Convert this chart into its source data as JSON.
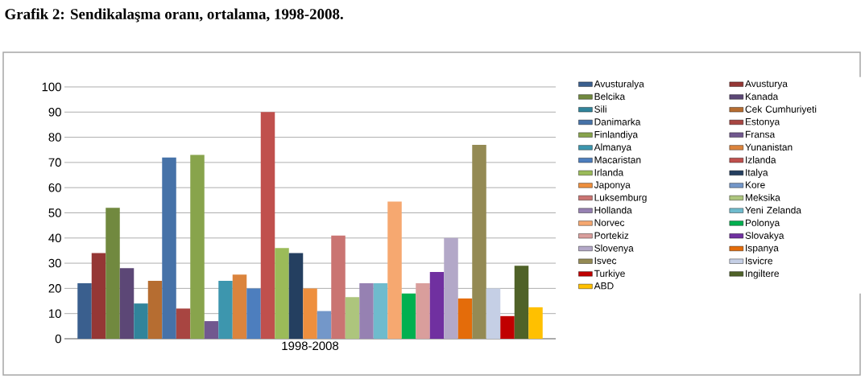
{
  "chart_data": {
    "type": "bar",
    "title": "Grafik 2: Sendikalaşma oranı, ortalama, 1998-2008.",
    "categories": [
      "1998-2008"
    ],
    "ylim": [
      0,
      100
    ],
    "yticks": [
      0,
      10,
      20,
      30,
      40,
      50,
      60,
      70,
      80,
      90,
      100
    ],
    "grid": "y",
    "legend": "right",
    "series": [
      {
        "name": "Avusturalya",
        "color": "#3a5f8e",
        "values": [
          22
        ]
      },
      {
        "name": "Avusturya",
        "color": "#953735",
        "values": [
          34
        ]
      },
      {
        "name": "Belcika",
        "color": "#71893f",
        "values": [
          52
        ]
      },
      {
        "name": "Kanada",
        "color": "#5c4776",
        "values": [
          28
        ]
      },
      {
        "name": "Sili",
        "color": "#31849b",
        "values": [
          14
        ]
      },
      {
        "name": "Cek Cumhuriyeti",
        "color": "#b66d31",
        "values": [
          23
        ]
      },
      {
        "name": "Danimarka",
        "color": "#4672a8",
        "values": [
          72
        ]
      },
      {
        "name": "Estonya",
        "color": "#a84541",
        "values": [
          12
        ]
      },
      {
        "name": "Finlandiya",
        "color": "#88a44c",
        "values": [
          73
        ]
      },
      {
        "name": "Fransa",
        "color": "#71588f",
        "values": [
          7
        ]
      },
      {
        "name": "Almanya",
        "color": "#3d96ae",
        "values": [
          23
        ]
      },
      {
        "name": "Yunanistan",
        "color": "#db843d",
        "values": [
          25.5
        ]
      },
      {
        "name": "Macaristan",
        "color": "#4d7ebe",
        "values": [
          20
        ]
      },
      {
        "name": "Izlanda",
        "color": "#c0504d",
        "values": [
          90
        ]
      },
      {
        "name": "Irlanda",
        "color": "#9bbb59",
        "values": [
          36
        ]
      },
      {
        "name": "Italya",
        "color": "#243f60",
        "values": [
          34
        ]
      },
      {
        "name": "Japonya",
        "color": "#ee8f3e",
        "values": [
          20
        ]
      },
      {
        "name": "Kore",
        "color": "#7397c9",
        "values": [
          11
        ]
      },
      {
        "name": "Luksemburg",
        "color": "#ca7472",
        "values": [
          41
        ]
      },
      {
        "name": "Meksika",
        "color": "#adc57d",
        "values": [
          16.5
        ]
      },
      {
        "name": "Hollanda",
        "color": "#9681b2",
        "values": [
          22
        ]
      },
      {
        "name": "Yeni Zelanda",
        "color": "#6fbbcd",
        "values": [
          22
        ]
      },
      {
        "name": "Norvec",
        "color": "#f6a870",
        "values": [
          54.5
        ]
      },
      {
        "name": "Polonya",
        "color": "#00b050",
        "values": [
          18
        ]
      },
      {
        "name": "Portekiz",
        "color": "#d99e9c",
        "values": [
          22
        ]
      },
      {
        "name": "Slovakya",
        "color": "#7030a0",
        "values": [
          26.5
        ]
      },
      {
        "name": "Slovenya",
        "color": "#b3a8c8",
        "values": [
          40
        ]
      },
      {
        "name": "Ispanya",
        "color": "#e46c0a",
        "values": [
          16
        ]
      },
      {
        "name": "Isvec",
        "color": "#948a54",
        "values": [
          77
        ]
      },
      {
        "name": "Isvicre",
        "color": "#c5cfe5",
        "values": [
          20
        ]
      },
      {
        "name": "Turkiye",
        "color": "#c00000",
        "values": [
          9
        ]
      },
      {
        "name": "Ingiltere",
        "color": "#4f6228",
        "values": [
          29
        ]
      },
      {
        "name": "ABD",
        "color": "#ffc000",
        "values": [
          12.5
        ]
      }
    ]
  }
}
